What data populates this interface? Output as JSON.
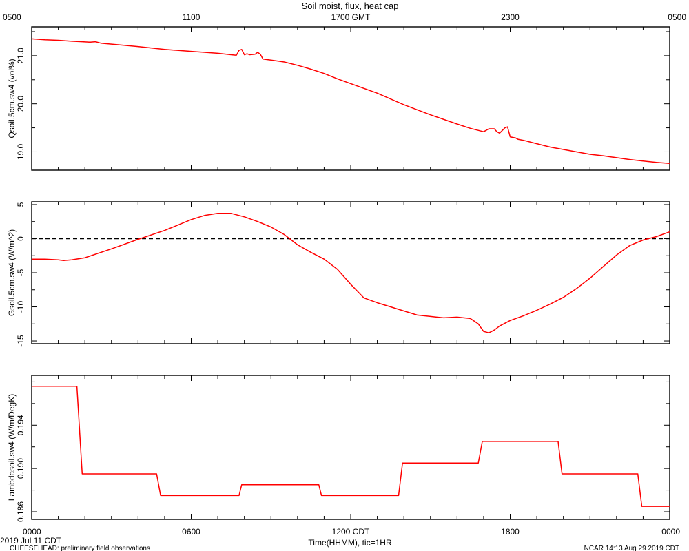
{
  "chart_data": {
    "type": "line",
    "title": "Soil moist, flux, heat cap",
    "colors": {
      "series": "#ff0000",
      "axes": "#000000",
      "zero_line": "#000000"
    },
    "xlim": [
      0,
      24
    ],
    "top_axis": {
      "ticks": [
        0,
        6,
        12,
        18,
        24
      ],
      "tick_labels": [
        "0500",
        "1100",
        "1700 GMT",
        "2300",
        "0500"
      ]
    },
    "bottom_axis": {
      "ticks": [
        0,
        6,
        12,
        18,
        24
      ],
      "tick_labels": [
        "0000",
        "0600",
        "1200 CDT",
        "1800",
        "0000"
      ],
      "xlabel": "Time(HHMM), tic=1HR"
    },
    "panels": [
      {
        "ylabel": "Qsoil.5cm.sw4 (vol%)",
        "ylim": [
          18.62,
          21.6
        ],
        "yticks": [
          19.0,
          20.0,
          21.0
        ],
        "ytick_labels": [
          "19.0",
          "20.0",
          "21.0"
        ],
        "series": [
          {
            "x": [
              0,
              0.5,
              1.0,
              1.5,
              1.9,
              2.2,
              2.4,
              2.6,
              3.0,
              4.0,
              5.0,
              6.0,
              7.0,
              7.5,
              7.7,
              7.8,
              7.9,
              8.0,
              8.1,
              8.2,
              8.4,
              8.5,
              8.6,
              8.7,
              9.0,
              9.5,
              10.0,
              10.5,
              11.0,
              11.5,
              12.0,
              13.0,
              14.0,
              15.0,
              16.0,
              16.5,
              17.0,
              17.2,
              17.4,
              17.5,
              17.6,
              17.8,
              17.9,
              18.0,
              18.2,
              18.3,
              18.5,
              19.0,
              19.5,
              20.0,
              20.5,
              21.0,
              21.5,
              22.0,
              22.5,
              23.0,
              23.5,
              24.0
            ],
            "y": [
              21.35,
              21.33,
              21.32,
              21.3,
              21.29,
              21.28,
              21.29,
              21.26,
              21.24,
              21.19,
              21.13,
              21.09,
              21.05,
              21.02,
              21.01,
              21.11,
              21.13,
              21.02,
              21.04,
              21.02,
              21.03,
              21.07,
              21.03,
              20.93,
              20.91,
              20.87,
              20.8,
              20.72,
              20.63,
              20.52,
              20.42,
              20.22,
              19.98,
              19.77,
              19.58,
              19.49,
              19.42,
              19.48,
              19.48,
              19.42,
              19.39,
              19.5,
              19.52,
              19.31,
              19.29,
              19.26,
              19.24,
              19.17,
              19.1,
              19.05,
              19.0,
              18.95,
              18.92,
              18.88,
              18.84,
              18.81,
              18.78,
              18.76
            ]
          }
        ]
      },
      {
        "ylabel": "Gsoil.5cm.sw4 (W/m^2)",
        "ylim": [
          -15.4,
          5.4
        ],
        "yticks": [
          -15,
          -10,
          -5,
          0,
          5
        ],
        "ytick_labels": [
          "-15",
          "-10",
          "-5",
          "0",
          "5"
        ],
        "zero_line": 0,
        "series": [
          {
            "x": [
              0,
              0.5,
              1.0,
              1.2,
              1.5,
              2.0,
              3.0,
              4.0,
              5.0,
              6.0,
              6.5,
              7.0,
              7.5,
              8.0,
              8.5,
              9.0,
              9.5,
              10.0,
              10.5,
              11.0,
              11.5,
              12.0,
              12.5,
              13.0,
              13.5,
              14.0,
              14.5,
              15.0,
              15.5,
              16.0,
              16.5,
              16.8,
              17.0,
              17.2,
              17.4,
              17.6,
              17.8,
              18.0,
              18.5,
              19.0,
              19.5,
              20.0,
              20.5,
              21.0,
              21.5,
              22.0,
              22.5,
              23.0,
              23.5,
              24.0
            ],
            "y": [
              -3.0,
              -3.0,
              -3.1,
              -3.2,
              -3.1,
              -2.8,
              -1.5,
              -0.1,
              1.2,
              2.8,
              3.4,
              3.7,
              3.7,
              3.2,
              2.5,
              1.7,
              0.6,
              -0.9,
              -2.0,
              -3.0,
              -4.5,
              -6.7,
              -8.7,
              -9.4,
              -10.0,
              -10.6,
              -11.2,
              -11.4,
              -11.6,
              -11.5,
              -11.7,
              -12.5,
              -13.6,
              -13.8,
              -13.4,
              -12.8,
              -12.4,
              -12.0,
              -11.3,
              -10.5,
              -9.6,
              -8.6,
              -7.3,
              -5.8,
              -4.1,
              -2.4,
              -1.0,
              -0.2,
              0.3,
              1.0
            ]
          }
        ]
      },
      {
        "ylabel": "Lambdasoil.sw4 (W/m/DegK)",
        "ylim": [
          0.1853,
          0.1986
        ],
        "yticks": [
          0.186,
          0.19,
          0.194
        ],
        "ytick_labels": [
          "0.186",
          "0.190",
          "0.194"
        ],
        "series": [
          {
            "x": [
              0,
              1.7,
              1.9,
              4.7,
              4.85,
              7.8,
              7.9,
              10.8,
              10.9,
              13.8,
              13.95,
              16.8,
              16.95,
              19.8,
              19.95,
              22.8,
              22.95,
              24.0
            ],
            "y": [
              0.1976,
              0.1976,
              0.1895,
              0.1895,
              0.1875,
              0.1875,
              0.1885,
              0.1885,
              0.1875,
              0.1875,
              0.1905,
              0.1905,
              0.1925,
              0.1925,
              0.1895,
              0.1895,
              0.1865,
              0.1865
            ]
          }
        ]
      }
    ]
  },
  "footer": {
    "left_date": "2019 Jul 11 CDT",
    "left_note": "CHEESEHEAD: preliminary field observations",
    "right_note": "NCAR 14:13 Aug 29 2019 CDT"
  }
}
